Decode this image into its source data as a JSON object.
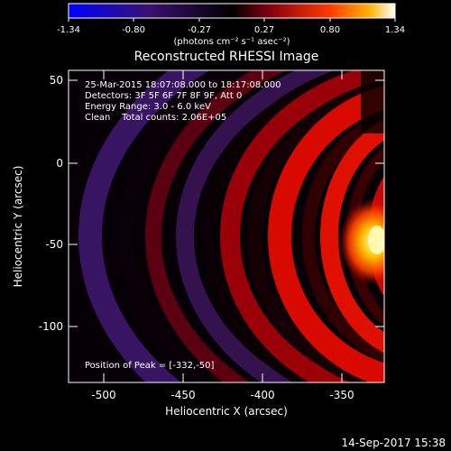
{
  "colorbar": {
    "ticks": [
      "-1.34",
      "-0.80",
      "-0.27",
      "0.27",
      "0.80",
      "1.34"
    ],
    "unit_label": "(photons cm⁻² s⁻¹ asec⁻²)"
  },
  "title": "Reconstructed RHESSI Image",
  "annotations": {
    "time": "25-Mar-2015 18:07:08.000 to 18:17:08.000",
    "detectors": "Detectors: 3F 5F 6F 7F 8F 9F, Att 0",
    "energy": "Energy Range: 3.0 - 6.0 keV",
    "clean": "Clean    Total counts: 2.06E+05",
    "peak": "Position of Peak = [-332,-50]"
  },
  "axes": {
    "xlabel": "Heliocentric X (arcsec)",
    "ylabel": "Heliocentric Y (arcsec)",
    "xticks": [
      "-500",
      "-450",
      "-400",
      "-350"
    ],
    "yticks": [
      "50",
      "0",
      "-50",
      "-100"
    ]
  },
  "footer": "14-Sep-2017 15:38"
}
